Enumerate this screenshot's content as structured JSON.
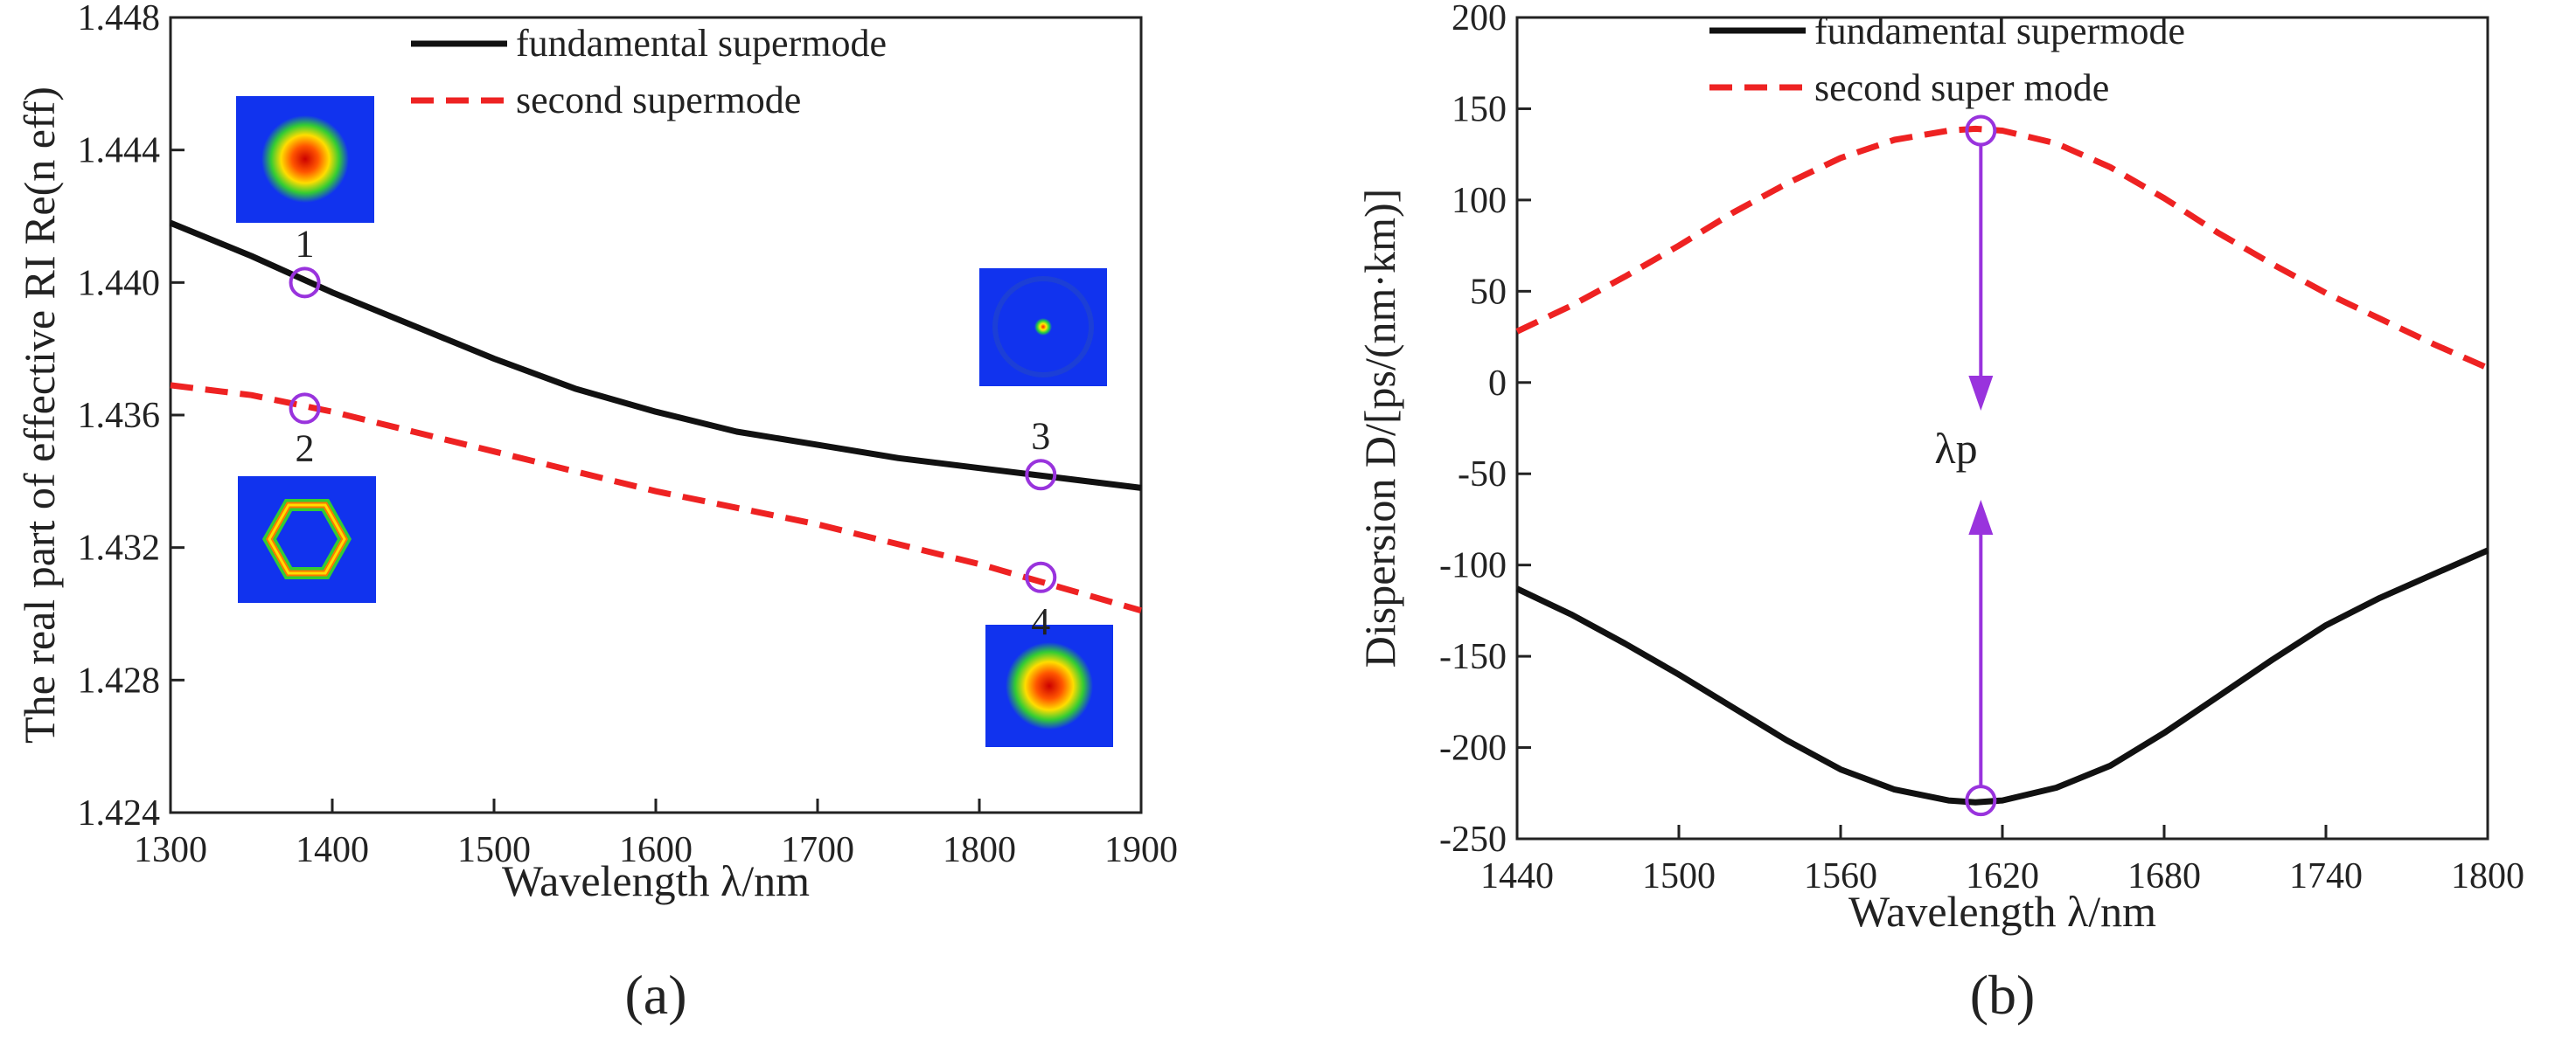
{
  "chart_data": [
    {
      "type": "line",
      "panel_label": "a",
      "xlabel": "Wavelength λ/nm",
      "ylabel": "The real part of effective RI Re(n eff)",
      "xlim": [
        1300,
        1900
      ],
      "ylim": [
        1.424,
        1.448
      ],
      "xticks": [
        "1300",
        "1400",
        "1500",
        "1600",
        "1700",
        "1800",
        "1900"
      ],
      "yticks": [
        "1.424",
        "1.428",
        "1.432",
        "1.436",
        "1.440",
        "1.444",
        "1.448"
      ],
      "legend_position": "top-right",
      "series": [
        {
          "name": "fundamental supermode",
          "color": "#111111",
          "style": "solid",
          "x": [
            1300,
            1350,
            1400,
            1450,
            1500,
            1550,
            1600,
            1650,
            1700,
            1750,
            1800,
            1850,
            1900
          ],
          "y": [
            1.4418,
            1.4408,
            1.4397,
            1.4387,
            1.4377,
            1.4368,
            1.4361,
            1.4355,
            1.4351,
            1.4347,
            1.4344,
            1.4341,
            1.4338
          ]
        },
        {
          "name": "second supermode",
          "color": "#ee2222",
          "style": "dashed",
          "x": [
            1300,
            1350,
            1400,
            1450,
            1500,
            1550,
            1600,
            1650,
            1700,
            1750,
            1800,
            1850,
            1900
          ],
          "y": [
            1.4369,
            1.4366,
            1.4361,
            1.4355,
            1.4349,
            1.4343,
            1.4337,
            1.4332,
            1.4327,
            1.4321,
            1.4315,
            1.4308,
            1.4301
          ]
        }
      ],
      "markers": [
        {
          "label": "1",
          "x": 1383,
          "y": 1.44
        },
        {
          "label": "2",
          "x": 1383,
          "y": 1.4362
        },
        {
          "label": "3",
          "x": 1838,
          "y": 1.4342
        },
        {
          "label": "4",
          "x": 1838,
          "y": 1.4311
        }
      ]
    },
    {
      "type": "line",
      "panel_label": "b",
      "xlabel": "Wavelength λ/nm",
      "ylabel": "Dispersion D/[ps/(nm·km)]",
      "xlim": [
        1440,
        1800
      ],
      "ylim": [
        -250,
        200
      ],
      "xticks": [
        "1440",
        "1500",
        "1560",
        "1620",
        "1680",
        "1740",
        "1800"
      ],
      "yticks": [
        "-250",
        "-200",
        "-150",
        "-100",
        "-50",
        "0",
        "50",
        "100",
        "150",
        "200"
      ],
      "legend_position": "top-center",
      "series": [
        {
          "name": "fundamental supermode",
          "color": "#111111",
          "style": "solid",
          "x": [
            1440,
            1460,
            1480,
            1500,
            1520,
            1540,
            1560,
            1580,
            1600,
            1610,
            1620,
            1640,
            1660,
            1680,
            1700,
            1720,
            1740,
            1760,
            1780,
            1800
          ],
          "y": [
            -113,
            -127,
            -143,
            -160,
            -178,
            -196,
            -212,
            -223,
            -229,
            -230,
            -229,
            -222,
            -210,
            -192,
            -172,
            -152,
            -133,
            -118,
            -105,
            -92
          ]
        },
        {
          "name": "second super mode",
          "color": "#ee2222",
          "style": "dashed",
          "x": [
            1440,
            1460,
            1480,
            1500,
            1520,
            1540,
            1560,
            1580,
            1600,
            1610,
            1620,
            1640,
            1660,
            1680,
            1700,
            1720,
            1740,
            1760,
            1780,
            1800
          ],
          "y": [
            28,
            42,
            58,
            75,
            93,
            109,
            123,
            133,
            138,
            139,
            138,
            131,
            118,
            101,
            82,
            65,
            49,
            35,
            21,
            8
          ]
        }
      ],
      "markers": [
        {
          "label": "",
          "x": 1612,
          "y": 138
        },
        {
          "label": "",
          "x": 1612,
          "y": -229
        }
      ],
      "annotation": "λp"
    }
  ]
}
